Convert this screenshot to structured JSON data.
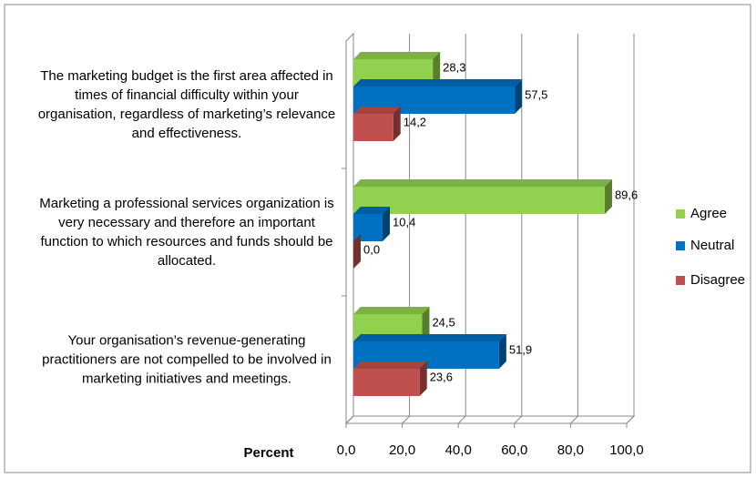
{
  "chart_data": {
    "type": "bar",
    "orientation": "horizontal",
    "x_label": "Percent",
    "categories": [
      "The marketing budget is the first area affected in times of financial difficulty within your organisation, regardless of marketing’s relevance and effectiveness.",
      "Marketing a professional services organization is very necessary and therefore an important function to which resources and funds should be allocated.",
      "Your organisation’s revenue-generating practitioners are not compelled to be involved in marketing initiatives and meetings."
    ],
    "series": [
      {
        "name": "Agree",
        "color": "#92d050",
        "values": [
          28.3,
          89.6,
          24.5
        ],
        "value_labels": [
          "28,3",
          "89,6",
          "24,5"
        ]
      },
      {
        "name": "Neutral",
        "color": "#0070c0",
        "values": [
          57.5,
          10.4,
          51.9
        ],
        "value_labels": [
          "57,5",
          "10,4",
          "51,9"
        ]
      },
      {
        "name": "Disagree",
        "color": "#c0504d",
        "values": [
          14.2,
          0.0,
          23.6
        ],
        "value_labels": [
          "14,2",
          "0,0",
          "23,6"
        ]
      }
    ],
    "xlim": [
      0,
      100
    ],
    "xticks": [
      {
        "value": 0,
        "label": "0,0"
      },
      {
        "value": 20,
        "label": "20,0"
      },
      {
        "value": 40,
        "label": "40,0"
      },
      {
        "value": 60,
        "label": "60,0"
      },
      {
        "value": 80,
        "label": "80,0"
      },
      {
        "value": 100,
        "label": "100,0"
      }
    ],
    "grid": true,
    "legend": "right"
  }
}
